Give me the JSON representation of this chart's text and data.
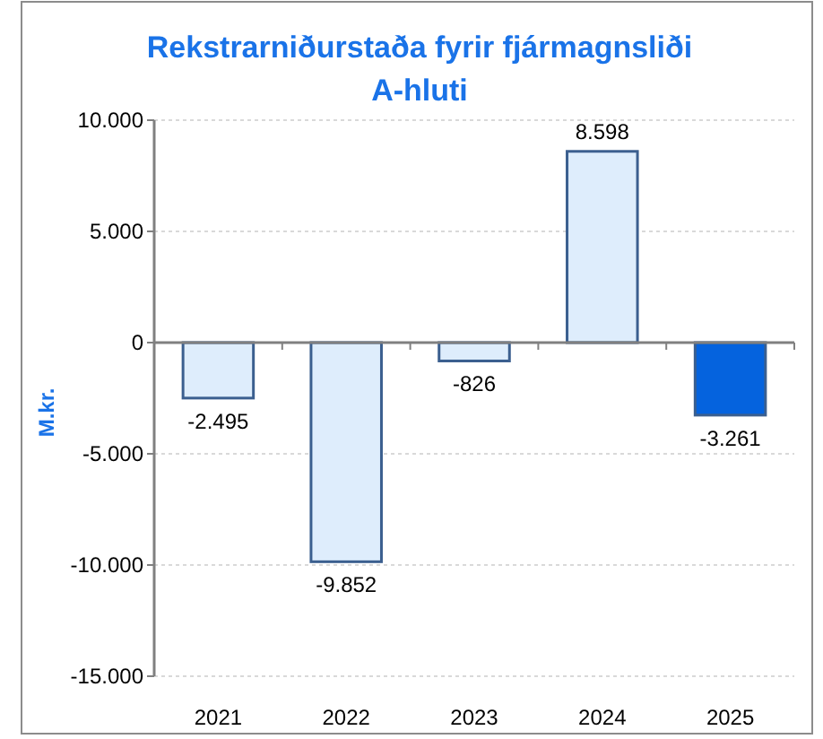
{
  "chart_data": {
    "type": "bar",
    "title": "Rekstrarniðurstaða fyrir fjármagnsliði\nA-hluti",
    "ylabel": "M.kr.",
    "categories": [
      "2021",
      "2022",
      "2023",
      "2024",
      "2025"
    ],
    "values": [
      -2495,
      -9852,
      -826,
      8598,
      -3261
    ],
    "colors": [
      "#deedfc",
      "#deedfc",
      "#deedfc",
      "#deedfc",
      "#0563de"
    ],
    "value_labels": [
      "-2.495",
      "-9.852",
      "-826",
      "8.598",
      "-3.261"
    ],
    "ylim": [
      -15000,
      10000
    ],
    "yticks": [
      {
        "value": 10000,
        "label": "10.000"
      },
      {
        "value": 5000,
        "label": "5.000"
      },
      0,
      {
        "value": -5000,
        "label": "-5.000"
      },
      {
        "value": -10000,
        "label": "-10.000"
      },
      {
        "value": -15000,
        "label": "-15.000"
      }
    ],
    "grid": "y"
  }
}
